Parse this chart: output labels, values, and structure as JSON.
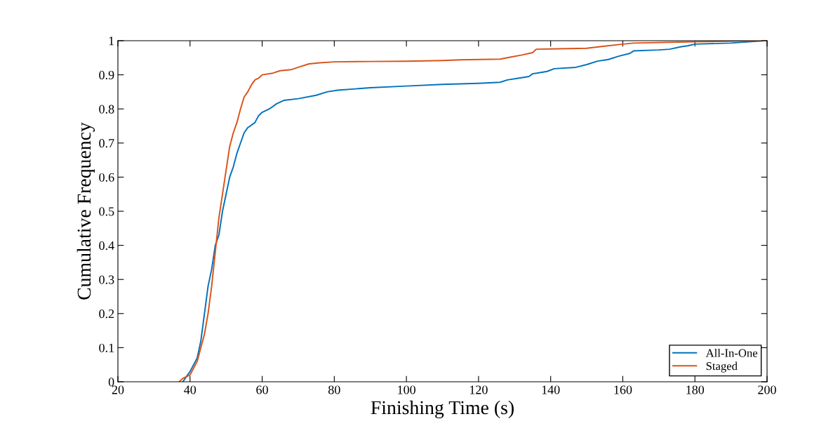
{
  "chart_data": {
    "type": "line",
    "xlabel": "Finishing Time (s)",
    "ylabel": "Cumulative Frequency",
    "xlim": [
      20,
      200
    ],
    "xticks": [
      20,
      40,
      60,
      80,
      100,
      120,
      140,
      160,
      180,
      200
    ],
    "ylim": [
      0,
      1
    ],
    "yticks": [
      0,
      0.1,
      0.2,
      0.3,
      0.4,
      0.5,
      0.6,
      0.7,
      0.8,
      0.9,
      1
    ],
    "grid": false,
    "legend": "bottom right",
    "marker": "none",
    "line_style": "solid",
    "series": [
      {
        "name": "All-In-One",
        "color": "#0072bd",
        "x": [
          38,
          40,
          42,
          43,
          44,
          45,
          46,
          47,
          48,
          49,
          50,
          51,
          52,
          53,
          54,
          55,
          56,
          58,
          59,
          60,
          62,
          64,
          66,
          70,
          75,
          78,
          81,
          90,
          100,
          110,
          120,
          126,
          128,
          131,
          134,
          135,
          139,
          141,
          147,
          150,
          153,
          156,
          159,
          162,
          163,
          170,
          173,
          176,
          178,
          180,
          190,
          199
        ],
        "values": [
          0,
          0.03,
          0.07,
          0.12,
          0.2,
          0.28,
          0.33,
          0.4,
          0.43,
          0.5,
          0.55,
          0.6,
          0.63,
          0.67,
          0.7,
          0.73,
          0.745,
          0.76,
          0.78,
          0.79,
          0.8,
          0.815,
          0.825,
          0.83,
          0.84,
          0.85,
          0.855,
          0.862,
          0.867,
          0.872,
          0.875,
          0.878,
          0.885,
          0.89,
          0.895,
          0.903,
          0.91,
          0.918,
          0.922,
          0.93,
          0.94,
          0.945,
          0.955,
          0.963,
          0.97,
          0.973,
          0.975,
          0.982,
          0.985,
          0.99,
          0.993,
          1.0
        ]
      },
      {
        "name": "Staged",
        "color": "#d95319",
        "x": [
          37,
          38,
          40,
          42,
          43,
          44,
          45,
          46,
          47,
          48,
          49,
          50,
          51,
          52,
          53,
          54,
          55,
          56,
          57,
          58,
          59,
          60,
          63,
          65,
          68,
          70,
          73,
          76,
          80,
          90,
          100,
          110,
          115,
          126,
          129,
          132,
          135,
          136,
          140,
          150,
          155,
          160,
          163,
          180,
          199
        ],
        "values": [
          0,
          0.01,
          0.02,
          0.06,
          0.1,
          0.14,
          0.2,
          0.28,
          0.38,
          0.48,
          0.55,
          0.62,
          0.69,
          0.73,
          0.76,
          0.8,
          0.835,
          0.85,
          0.87,
          0.885,
          0.89,
          0.9,
          0.905,
          0.912,
          0.915,
          0.922,
          0.932,
          0.935,
          0.938,
          0.939,
          0.94,
          0.942,
          0.944,
          0.946,
          0.952,
          0.958,
          0.965,
          0.975,
          0.976,
          0.978,
          0.984,
          0.99,
          0.993,
          0.997,
          1.0
        ]
      }
    ]
  }
}
